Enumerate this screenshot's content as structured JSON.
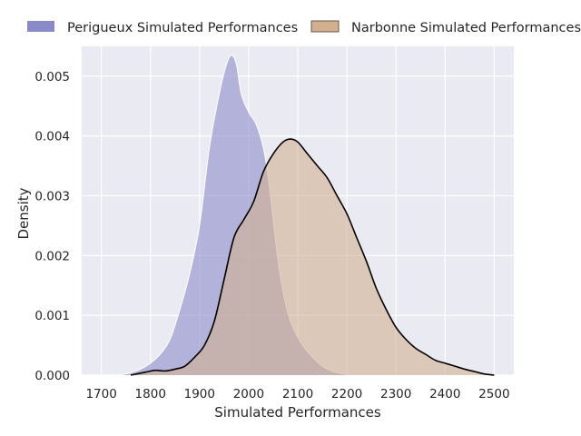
{
  "chart_data": {
    "type": "area",
    "subtype": "kde-density",
    "xlabel": "Simulated Performances",
    "ylabel": "Density",
    "xlim": [
      1660,
      2540
    ],
    "ylim": [
      0,
      0.0055
    ],
    "xticks": [
      1700,
      1800,
      1900,
      2000,
      2100,
      2200,
      2300,
      2400,
      2500
    ],
    "yticks": [
      0.0,
      0.001,
      0.002,
      0.003,
      0.004,
      0.005
    ],
    "xtick_labels": [
      "1700",
      "1800",
      "1900",
      "2000",
      "2100",
      "2200",
      "2300",
      "2400",
      "2500"
    ],
    "ytick_labels": [
      "0.000",
      "0.001",
      "0.002",
      "0.003",
      "0.004",
      "0.005"
    ],
    "grid": true,
    "legend_position": "top, outside plot",
    "series": [
      {
        "name": "Perigueux Simulated Performances",
        "fill_color": "#8a8ac8",
        "line_color": "#ffffff",
        "x": [
          1735,
          1760,
          1780,
          1800,
          1820,
          1840,
          1860,
          1880,
          1900,
          1920,
          1940,
          1955,
          1965,
          1975,
          1985,
          2000,
          2015,
          2030,
          2040,
          2050,
          2060,
          2075,
          2090,
          2110,
          2130,
          2150,
          2175,
          2200,
          2215
        ],
        "y": [
          0.0,
          4e-05,
          0.0001,
          0.0002,
          0.00035,
          0.0006,
          0.0011,
          0.0017,
          0.0025,
          0.0038,
          0.0047,
          0.0052,
          0.00535,
          0.0052,
          0.0047,
          0.0044,
          0.0042,
          0.0038,
          0.0033,
          0.0026,
          0.0019,
          0.0012,
          0.0008,
          0.0005,
          0.0003,
          0.00015,
          5e-05,
          1e-05,
          0.0
        ]
      },
      {
        "name": "Narbonne Simulated Performances",
        "fill_color": "#d2b08f",
        "line_color": "#000000",
        "x": [
          1760,
          1790,
          1810,
          1830,
          1850,
          1870,
          1890,
          1910,
          1930,
          1950,
          1970,
          1990,
          2010,
          2030,
          2050,
          2070,
          2085,
          2100,
          2120,
          2140,
          2160,
          2180,
          2200,
          2220,
          2240,
          2260,
          2280,
          2300,
          2320,
          2340,
          2360,
          2380,
          2400,
          2420,
          2440,
          2460,
          2480,
          2500
        ],
        "y": [
          0.0,
          5e-05,
          8e-05,
          7e-05,
          0.0001,
          0.00015,
          0.0003,
          0.0005,
          0.0009,
          0.0016,
          0.0023,
          0.0026,
          0.0029,
          0.0034,
          0.0037,
          0.0039,
          0.00395,
          0.0039,
          0.0037,
          0.0035,
          0.0033,
          0.003,
          0.0027,
          0.0023,
          0.0019,
          0.00145,
          0.0011,
          0.0008,
          0.0006,
          0.00045,
          0.00035,
          0.00025,
          0.0002,
          0.00015,
          0.0001,
          6e-05,
          2e-05,
          0.0
        ]
      }
    ]
  }
}
